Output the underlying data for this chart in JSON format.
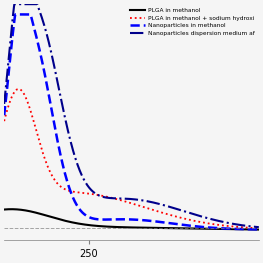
{
  "title": "",
  "xlabel": "",
  "ylabel": "",
  "xlim": [
    200,
    350
  ],
  "ylim": [
    -0.05,
    1.1
  ],
  "x_tick_labels": [
    "250"
  ],
  "x_tick_pos": [
    250
  ],
  "background": "#f5f5f5",
  "legend_labels": [
    "PLGA in methanol",
    "PLGA in methanol + sodium hydroxi",
    "Nanoparticles in methanol",
    "Nanoparticles dispersion medium af"
  ],
  "legend_colors": [
    "black",
    "red",
    "blue",
    "darkblue"
  ],
  "legend_styles": [
    "solid",
    "dotted",
    "dashed",
    "dashdot"
  ],
  "lw1": 1.5,
  "lw2": 1.3,
  "lw3": 1.8,
  "lw4": 1.5
}
